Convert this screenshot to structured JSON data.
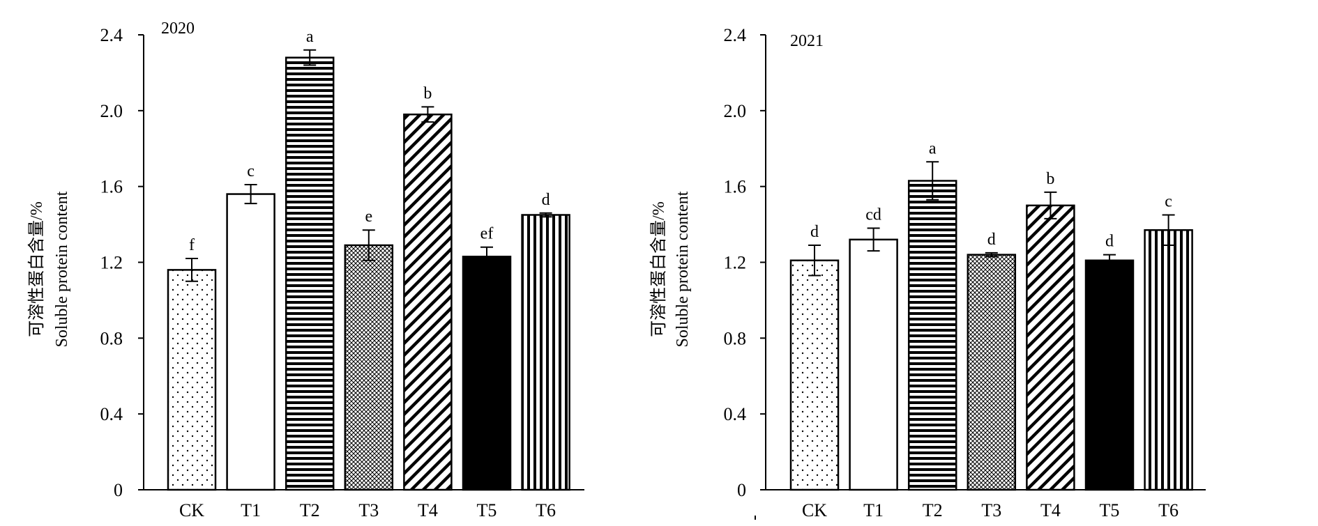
{
  "chart_data": [
    {
      "type": "bar",
      "title": "2020",
      "ylabel": [
        "可溶性蛋白含量/%",
        "Soluble protein content"
      ],
      "xlabel": "",
      "categories": [
        "CK",
        "T1",
        "T2",
        "T3",
        "T4",
        "T5",
        "T6"
      ],
      "values": [
        1.16,
        1.56,
        2.28,
        1.29,
        1.98,
        1.23,
        1.45
      ],
      "errors": [
        0.06,
        0.05,
        0.04,
        0.08,
        0.04,
        0.05,
        0.01
      ],
      "significance": [
        "f",
        "c",
        "a",
        "e",
        "b",
        "ef",
        "d"
      ],
      "patterns": [
        "dots",
        "blank",
        "horizontal",
        "crosshatch",
        "diagonal",
        "solid",
        "vertical"
      ],
      "ylim": [
        0,
        2.4
      ],
      "yticks": [
        "0",
        "0.4",
        "0.8",
        "1.2",
        "1.6",
        "2.0",
        "2.4"
      ],
      "grid": false,
      "legend": "none"
    },
    {
      "type": "bar",
      "title": "2021",
      "ylabel": [
        "可溶性蛋白含量/%",
        "Soluble protein content"
      ],
      "xlabel": "",
      "categories": [
        "CK",
        "T1",
        "T2",
        "T3",
        "T4",
        "T5",
        "T6"
      ],
      "values": [
        1.21,
        1.32,
        1.63,
        1.24,
        1.5,
        1.21,
        1.37
      ],
      "errors": [
        0.08,
        0.06,
        0.1,
        0.01,
        0.07,
        0.03,
        0.08
      ],
      "significance": [
        "d",
        "cd",
        "a",
        "d",
        "b",
        "d",
        "c"
      ],
      "patterns": [
        "dots",
        "blank",
        "horizontal",
        "crosshatch",
        "diagonal",
        "solid",
        "vertical"
      ],
      "ylim": [
        0,
        2.4
      ],
      "yticks": [
        "0",
        "0.4",
        "0.8",
        "1.2",
        "1.6",
        "2.0",
        "2.4"
      ],
      "grid": false,
      "legend": "none"
    }
  ]
}
